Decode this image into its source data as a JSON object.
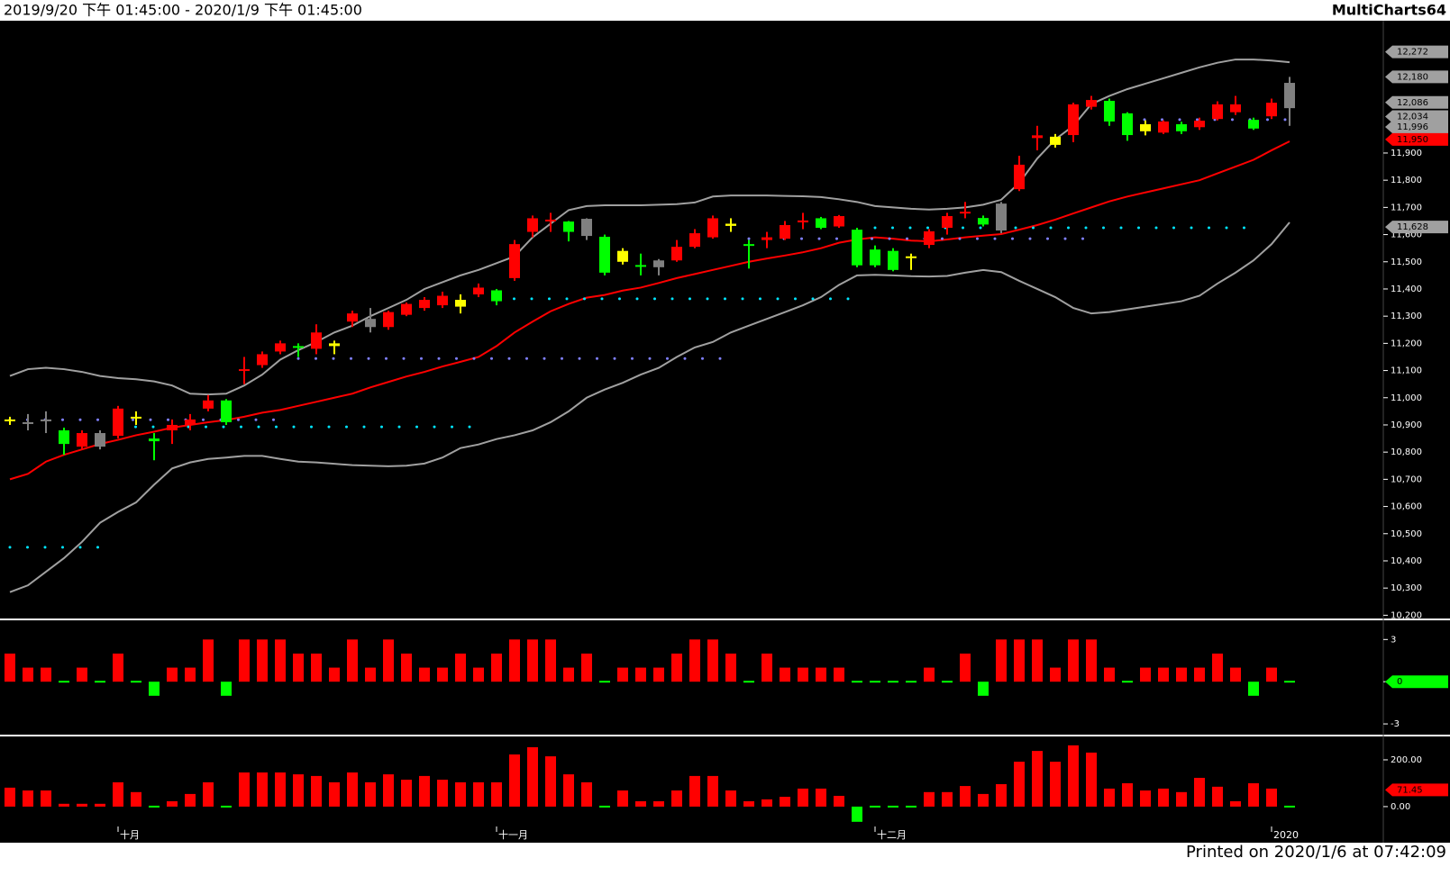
{
  "header": {
    "range": "2019/9/20 下午 01:45:00 - 2020/1/9 下午 01:45:00",
    "brand": "MultiCharts64"
  },
  "footer": {
    "printed": "Printed on 2020/1/6 at 07:42:09"
  },
  "chart_data": [
    {
      "type": "candlestick",
      "categories": [
        null,
        null,
        null,
        null,
        null,
        null,
        "十月",
        null,
        null,
        null,
        null,
        null,
        null,
        null,
        null,
        null,
        null,
        null,
        null,
        null,
        null,
        null,
        null,
        null,
        null,
        null,
        null,
        "十一月",
        null,
        null,
        null,
        null,
        null,
        null,
        null,
        null,
        null,
        null,
        null,
        null,
        null,
        null,
        null,
        null,
        null,
        null,
        null,
        null,
        "十二月",
        null,
        null,
        null,
        null,
        null,
        null,
        null,
        null,
        null,
        null,
        null,
        null,
        null,
        null,
        null,
        null,
        null,
        null,
        null,
        null,
        null,
        "2020",
        null
      ],
      "open": [
        10920,
        10910,
        10915,
        10880,
        10820,
        10870,
        10860,
        10930,
        10850,
        10880,
        10900,
        10960,
        10990,
        11100,
        11120,
        11170,
        11190,
        11180,
        11190,
        11280,
        11290,
        11260,
        11305,
        11330,
        11340,
        11360,
        11380,
        11395,
        11440,
        11610,
        11650,
        11648,
        11658,
        11592,
        11540,
        11488,
        11480,
        11505,
        11555,
        11590,
        11640,
        11565,
        11580,
        11585,
        11645,
        11660,
        11630,
        11618,
        11545,
        11540,
        11520,
        11562,
        11625,
        11678,
        11661,
        11615,
        11767,
        11955,
        11960,
        11966,
        12070,
        12092,
        12046,
        12006,
        11975,
        12006,
        11995,
        12025,
        12050,
        12022,
        12035,
        12065
      ],
      "high": [
        10930,
        10940,
        10950,
        10890,
        10880,
        10880,
        10970,
        10950,
        10870,
        10920,
        10940,
        11010,
        10995,
        11150,
        11170,
        11210,
        11200,
        11270,
        11210,
        11320,
        11330,
        11320,
        11350,
        11370,
        11390,
        11380,
        11420,
        11400,
        11580,
        11670,
        11680,
        11650,
        11660,
        11600,
        11550,
        11530,
        11510,
        11580,
        11620,
        11670,
        11660,
        11580,
        11610,
        11650,
        11680,
        11665,
        11672,
        11625,
        11560,
        11550,
        11530,
        11620,
        11680,
        11720,
        11670,
        11720,
        11890,
        12000,
        11970,
        12085,
        12110,
        12100,
        12050,
        12020,
        12020,
        12015,
        12030,
        12090,
        12110,
        12030,
        12100,
        12180
      ],
      "low": [
        10900,
        10880,
        10870,
        10790,
        10810,
        10810,
        10850,
        10900,
        10770,
        10830,
        10880,
        10950,
        10900,
        11050,
        11110,
        11160,
        11150,
        11160,
        11160,
        11260,
        11240,
        11250,
        11300,
        11320,
        11330,
        11310,
        11370,
        11340,
        11430,
        11590,
        11610,
        11575,
        11580,
        11450,
        11490,
        11450,
        11450,
        11500,
        11550,
        11585,
        11610,
        11475,
        11550,
        11580,
        11620,
        11620,
        11625,
        11480,
        11480,
        11465,
        11470,
        11550,
        11600,
        11660,
        11630,
        11605,
        11760,
        11910,
        11920,
        11940,
        12060,
        12000,
        11945,
        11965,
        11970,
        11970,
        11985,
        12020,
        12040,
        11985,
        12025,
        12000
      ],
      "close": [
        10915,
        10905,
        10920,
        10830,
        10870,
        10820,
        10960,
        10925,
        10840,
        10900,
        10920,
        10990,
        10910,
        11105,
        11160,
        11200,
        11185,
        11240,
        11200,
        11310,
        11260,
        11315,
        11345,
        11360,
        11375,
        11335,
        11405,
        11355,
        11565,
        11660,
        11655,
        11610,
        11595,
        11460,
        11500,
        11483,
        11505,
        11555,
        11605,
        11660,
        11632,
        11560,
        11590,
        11635,
        11652,
        11625,
        11668,
        11487,
        11487,
        11470,
        11515,
        11612,
        11668,
        11684,
        11637,
        11714,
        11857,
        11965,
        11930,
        12079,
        12095,
        12016,
        11966,
        11980,
        12016,
        11980,
        12019,
        12079,
        12079,
        11990,
        12085,
        12158
      ],
      "candle_colors": [
        "#ffff00",
        "#808080",
        "#808080",
        "#00ff00",
        "#ff0000",
        "#808080",
        "#ff0000",
        "#ffff00",
        "#00ff00",
        "#ff0000",
        "#ff0000",
        "#ff0000",
        "#00ff00",
        "#ff0000",
        "#ff0000",
        "#ff0000",
        "#00ff00",
        "#ff0000",
        "#ffff00",
        "#ff0000",
        "#808080",
        "#ff0000",
        "#ff0000",
        "#ff0000",
        "#ff0000",
        "#ffff00",
        "#ff0000",
        "#00ff00",
        "#ff0000",
        "#ff0000",
        "#ff0000",
        "#00ff00",
        "#808080",
        "#00ff00",
        "#ffff00",
        "#00ff00",
        "#808080",
        "#ff0000",
        "#ff0000",
        "#ff0000",
        "#ffff00",
        "#00ff00",
        "#ff0000",
        "#ff0000",
        "#ff0000",
        "#00ff00",
        "#ff0000",
        "#00ff00",
        "#00ff00",
        "#00ff00",
        "#ffff00",
        "#ff0000",
        "#ff0000",
        "#ff0000",
        "#00ff00",
        "#808080",
        "#ff0000",
        "#ff0000",
        "#ffff00",
        "#ff0000",
        "#ff0000",
        "#00ff00",
        "#00ff00",
        "#ffff00",
        "#ff0000",
        "#00ff00",
        "#ff0000",
        "#ff0000",
        "#ff0000",
        "#00ff00",
        "#ff0000",
        "#808080"
      ],
      "lines": [
        {
          "color": "#ff0000",
          "values": [
            10700,
            10720,
            10765,
            10790,
            10810,
            10830,
            10845,
            10862,
            10875,
            10890,
            10900,
            10910,
            10918,
            10930,
            10945,
            10955,
            10970,
            10985,
            11000,
            11015,
            11038,
            11058,
            11078,
            11095,
            11115,
            11132,
            11150,
            11190,
            11240,
            11280,
            11318,
            11345,
            11368,
            11378,
            11394,
            11405,
            11422,
            11440,
            11455,
            11470,
            11485,
            11500,
            11512,
            11523,
            11535,
            11550,
            11570,
            11582,
            11590,
            11585,
            11578,
            11575,
            11582,
            11590,
            11596,
            11602,
            11618,
            11635,
            11655,
            11678,
            11700,
            11722,
            11740,
            11755,
            11770,
            11785,
            11800,
            11825,
            11850,
            11875,
            11910,
            11943
          ]
        },
        {
          "color": "#a0a0a0",
          "values": [
            11080,
            11105,
            11110,
            11105,
            11095,
            11080,
            11072,
            11068,
            11060,
            11045,
            11015,
            11012,
            11015,
            11045,
            11085,
            11140,
            11175,
            11205,
            11240,
            11265,
            11300,
            11330,
            11360,
            11400,
            11425,
            11450,
            11470,
            11495,
            11520,
            11590,
            11640,
            11690,
            11705,
            11708,
            11708,
            11708,
            11710,
            11712,
            11718,
            11740,
            11744,
            11744,
            11744,
            11742,
            11741,
            11738,
            11730,
            11720,
            11705,
            11700,
            11695,
            11692,
            11695,
            11700,
            11710,
            11728,
            11790,
            11880,
            11950,
            12000,
            12080,
            12110,
            12135,
            12155,
            12175,
            12195,
            12215,
            12232,
            12244,
            12244,
            12240,
            12234
          ]
        },
        {
          "color": "#a0a0a0",
          "values": [
            10285,
            10310,
            10360,
            10410,
            10470,
            10540,
            10580,
            10615,
            10680,
            10740,
            10762,
            10775,
            10780,
            10786,
            10786,
            10775,
            10765,
            10762,
            10757,
            10752,
            10750,
            10748,
            10750,
            10758,
            10780,
            10815,
            10828,
            10848,
            10862,
            10880,
            10910,
            10950,
            11000,
            11030,
            11055,
            11085,
            11110,
            11150,
            11185,
            11205,
            11240,
            11265,
            11290,
            11315,
            11340,
            11370,
            11415,
            11450,
            11452,
            11450,
            11447,
            11446,
            11448,
            11460,
            11470,
            11462,
            11430,
            11400,
            11370,
            11330,
            11310,
            11315,
            11325,
            11335,
            11345,
            11355,
            11375,
            11420,
            11460,
            11505,
            11565,
            11645
          ]
        }
      ],
      "levels": [
        {
          "value": 10450,
          "start": 0,
          "end": 5,
          "color": "#00e5ff"
        },
        {
          "value": 10919,
          "start": 0,
          "end": 15,
          "color": "#8080ff"
        },
        {
          "value": 10893,
          "start": 6,
          "end": 26,
          "color": "#00e5ff"
        },
        {
          "value": 11144,
          "start": 16,
          "end": 40,
          "color": "#8080ff"
        },
        {
          "value": 11364,
          "start": 27,
          "end": 47,
          "color": "#00e5ff"
        },
        {
          "value": 11585,
          "start": 41,
          "end": 60,
          "color": "#8080ff"
        },
        {
          "value": 11625,
          "start": 48,
          "end": 69,
          "color": "#00e5ff"
        },
        {
          "value": 12023,
          "start": 61,
          "end": 71,
          "color": "#8080ff"
        }
      ],
      "ylim": [
        10188,
        12380
      ],
      "yticks": [
        {
          "value": 10200,
          "label": "10,200"
        },
        {
          "value": 10300,
          "label": "10,300"
        },
        {
          "value": 10400,
          "label": "10,400"
        },
        {
          "value": 10500,
          "label": "10,500"
        },
        {
          "value": 10600,
          "label": "10,600"
        },
        {
          "value": 10700,
          "label": "10,700"
        },
        {
          "value": 10800,
          "label": "10,800"
        },
        {
          "value": 10900,
          "label": "10,900"
        },
        {
          "value": 11000,
          "label": "11,000"
        },
        {
          "value": 11100,
          "label": "11,100"
        },
        {
          "value": 11200,
          "label": "11,200"
        },
        {
          "value": 11300,
          "label": "11,300"
        },
        {
          "value": 11400,
          "label": "11,400"
        },
        {
          "value": 11500,
          "label": "11,500"
        },
        {
          "value": 11600,
          "label": "11,600"
        },
        {
          "value": 11700,
          "label": "11,700"
        },
        {
          "value": 11800,
          "label": "11,800"
        },
        {
          "value": 11900,
          "label": "11,900"
        }
      ],
      "tags": [
        {
          "value": 12272,
          "label": "12,272",
          "color": "#a0a0a0"
        },
        {
          "value": 12180,
          "label": "12,180",
          "color": "#a0a0a0"
        },
        {
          "value": 12086,
          "label": "12,086",
          "color": "#a0a0a0"
        },
        {
          "value": 12034,
          "label": "12,034",
          "color": "#a0a0a0"
        },
        {
          "value": 11996,
          "label": "11,996",
          "color": "#a0a0a0"
        },
        {
          "value": 11950,
          "label": "11,950",
          "color": "#ff0000"
        },
        {
          "value": 11628,
          "label": "11,628",
          "color": "#a0a0a0"
        }
      ]
    },
    {
      "type": "bar",
      "up_color": "#ff0000",
      "down_color": "#00ff00",
      "values": [
        2,
        1,
        1,
        0,
        1,
        0,
        2,
        0,
        -1,
        1,
        1,
        3,
        -1,
        3,
        3,
        3,
        2,
        2,
        1,
        3,
        1,
        3,
        2,
        1,
        1,
        2,
        1,
        2,
        3,
        3,
        3,
        1,
        2,
        0,
        1,
        1,
        1,
        2,
        3,
        3,
        2,
        0,
        2,
        1,
        1,
        1,
        1,
        0,
        0,
        0,
        0,
        1,
        0,
        2,
        -1,
        3,
        3,
        3,
        1,
        3,
        3,
        1,
        0,
        1,
        1,
        1,
        1,
        2,
        1,
        -1,
        1,
        0
      ],
      "ylim": [
        -3.7,
        4.3
      ],
      "yticks": [
        3,
        0,
        -3
      ],
      "tags": [
        {
          "value": 0,
          "color": "#00ff00"
        }
      ]
    },
    {
      "type": "bar",
      "up_color": "#ff0000",
      "down_color": "#00ff00",
      "values": [
        81,
        69,
        69,
        12,
        12,
        12,
        104,
        62,
        -2,
        23,
        54,
        104,
        -4,
        146,
        146,
        146,
        138,
        131,
        104,
        146,
        104,
        138,
        115,
        131,
        115,
        104,
        104,
        104,
        223,
        254,
        215,
        138,
        104,
        -4,
        69,
        23,
        23,
        69,
        131,
        131,
        69,
        23,
        31,
        42,
        77,
        77,
        46,
        -65,
        -6,
        -2,
        -4,
        62,
        62,
        88,
        54,
        96,
        192,
        238,
        192,
        262,
        231,
        77,
        100,
        69,
        77,
        62,
        123,
        85,
        23,
        100,
        77,
        0
      ],
      "ylim": [
        -85,
        300
      ],
      "yticks": [
        {
          "value": 200,
          "label": "200.00"
        },
        {
          "value": 0,
          "label": "0.00"
        }
      ],
      "tags": [
        {
          "value": 71.45,
          "color": "#ff0000"
        }
      ]
    }
  ]
}
